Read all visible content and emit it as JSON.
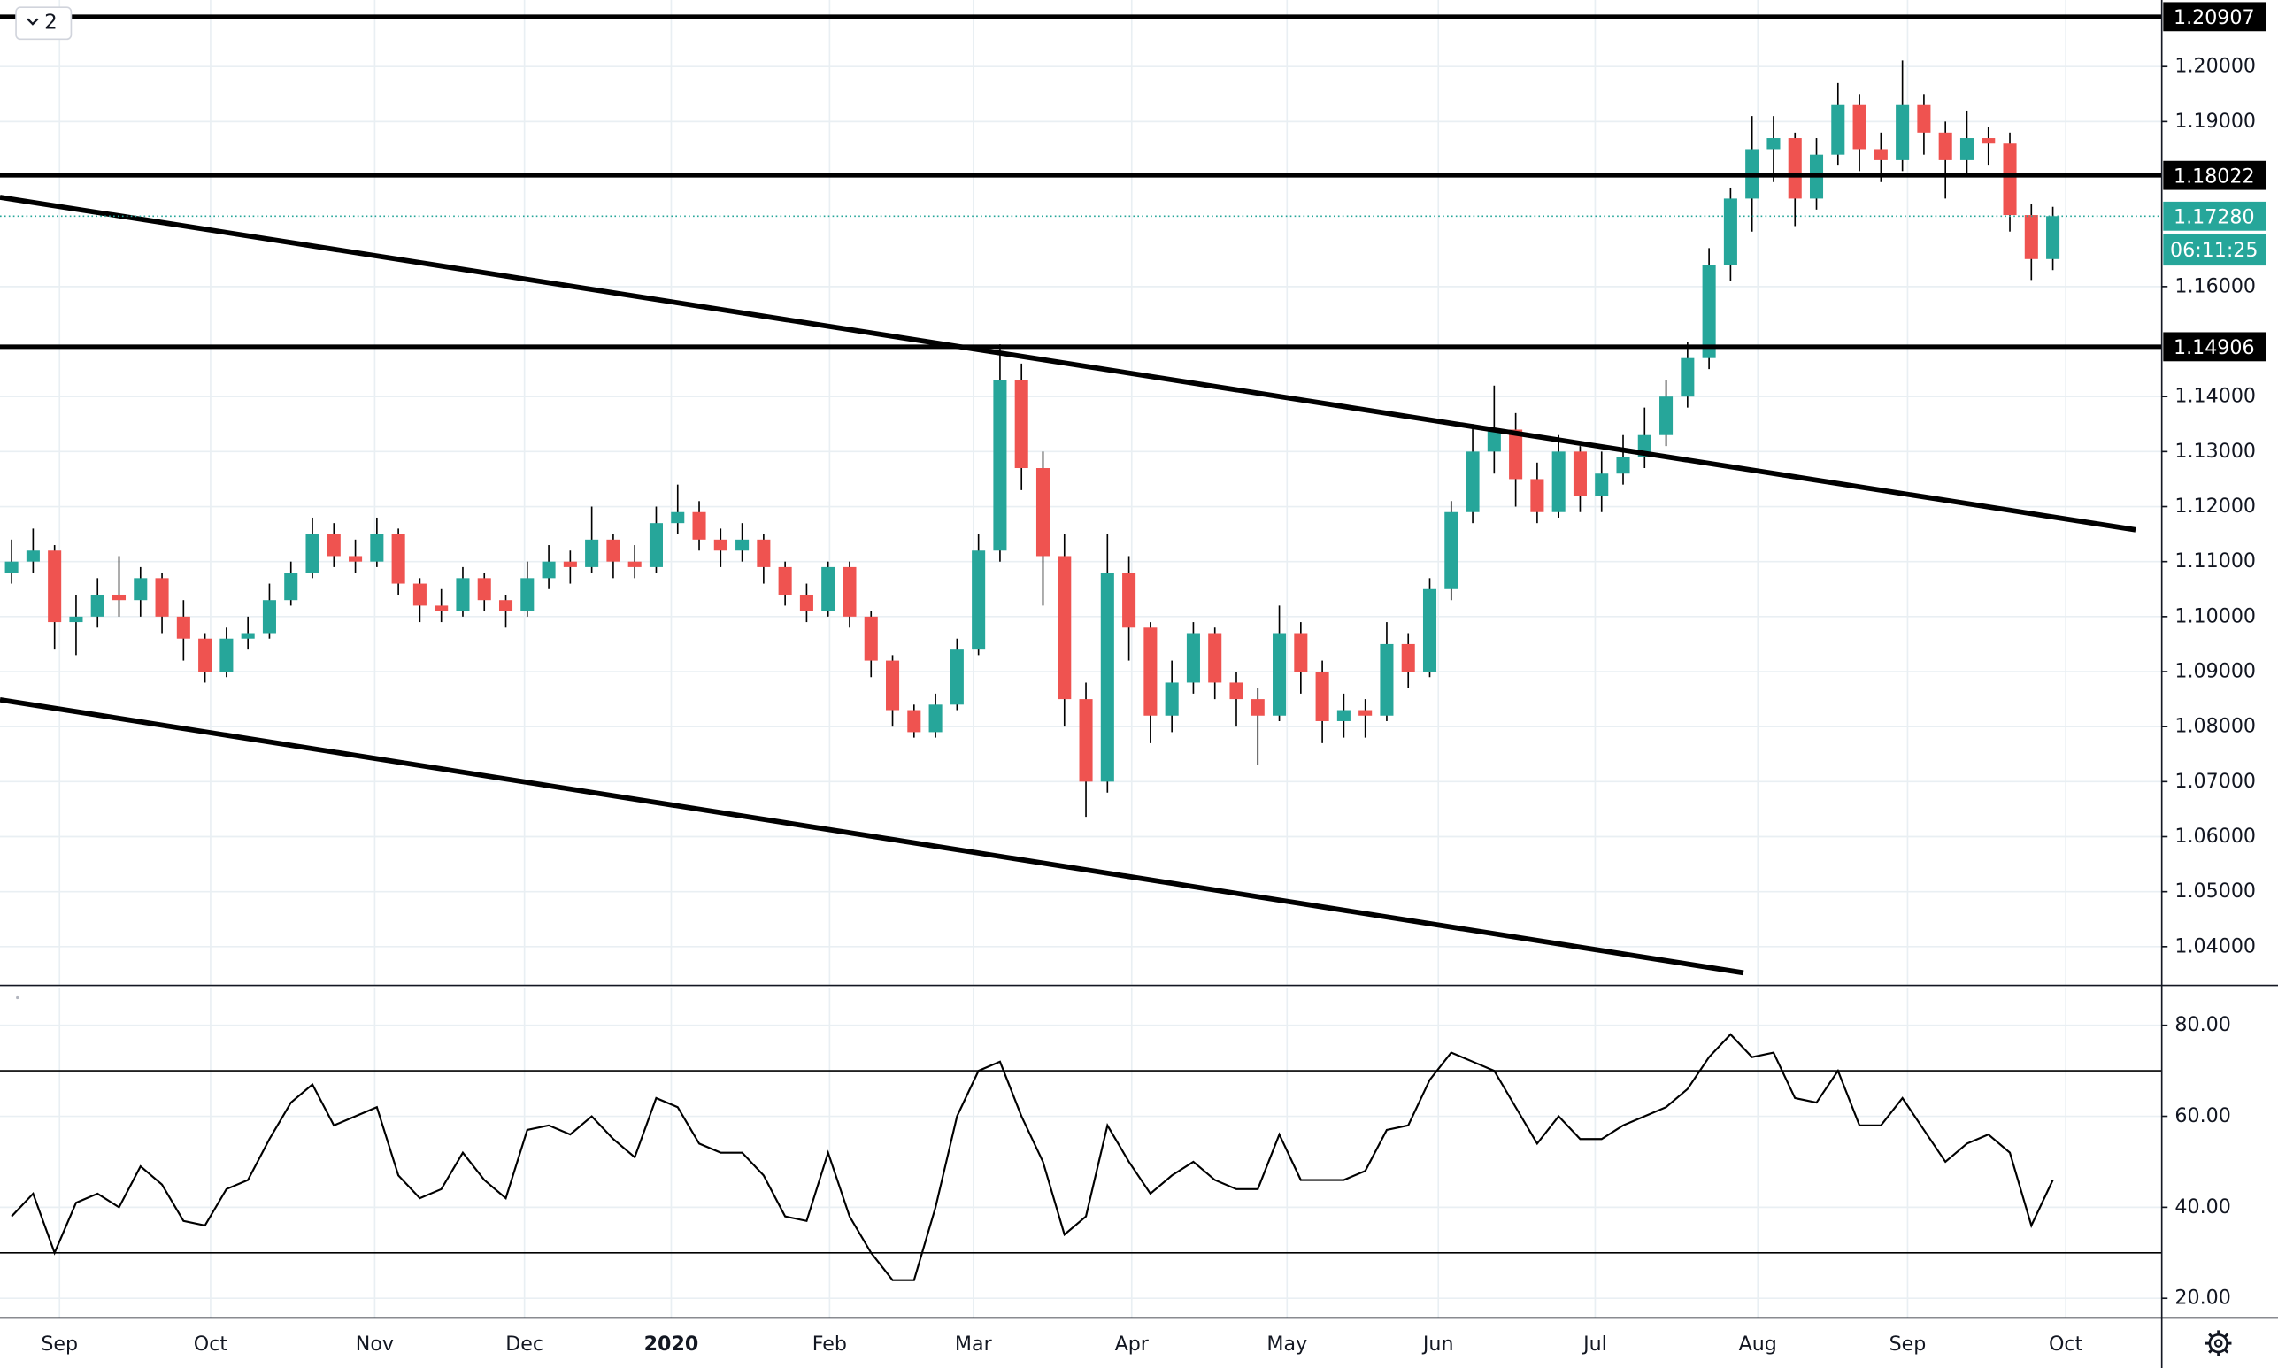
{
  "ui": {
    "badge": "2"
  },
  "chart_data": [
    {
      "type": "candlestick",
      "xlim": [
        -0.54,
        100.07
      ],
      "ylim": [
        1.0331,
        1.2121
      ],
      "grid": true,
      "up_color": "#26a69a",
      "down_color": "#ef5350",
      "open": [
        1.108,
        1.11,
        1.112,
        1.099,
        1.1,
        1.104,
        1.103,
        1.107,
        1.1,
        1.096,
        1.09,
        1.096,
        1.097,
        1.103,
        1.108,
        1.115,
        1.111,
        1.11,
        1.115,
        1.106,
        1.102,
        1.101,
        1.107,
        1.103,
        1.101,
        1.107,
        1.11,
        1.109,
        1.114,
        1.11,
        1.109,
        1.117,
        1.119,
        1.114,
        1.112,
        1.114,
        1.109,
        1.104,
        1.101,
        1.109,
        1.1,
        1.092,
        1.083,
        1.079,
        1.084,
        1.094,
        1.112,
        1.143,
        1.127,
        1.111,
        1.085,
        1.07,
        1.108,
        1.098,
        1.082,
        1.088,
        1.097,
        1.088,
        1.085,
        1.082,
        1.097,
        1.09,
        1.081,
        1.083,
        1.082,
        1.095,
        1.09,
        1.105,
        1.119,
        1.13,
        1.134,
        1.125,
        1.119,
        1.13,
        1.122,
        1.126,
        1.129,
        1.133,
        1.14,
        1.147,
        1.164,
        1.176,
        1.185,
        1.187,
        1.176,
        1.184,
        1.193,
        1.185,
        1.183,
        1.193,
        1.188,
        1.183,
        1.187,
        1.186,
        1.173,
        1.165
      ],
      "high": [
        1.114,
        1.116,
        1.113,
        1.104,
        1.107,
        1.111,
        1.109,
        1.108,
        1.103,
        1.097,
        1.098,
        1.1,
        1.106,
        1.11,
        1.118,
        1.117,
        1.114,
        1.118,
        1.116,
        1.107,
        1.105,
        1.109,
        1.108,
        1.104,
        1.11,
        1.113,
        1.112,
        1.12,
        1.115,
        1.113,
        1.12,
        1.124,
        1.121,
        1.116,
        1.117,
        1.115,
        1.11,
        1.106,
        1.11,
        1.11,
        1.101,
        1.093,
        1.084,
        1.086,
        1.096,
        1.115,
        1.1495,
        1.146,
        1.13,
        1.115,
        1.088,
        1.115,
        1.111,
        1.099,
        1.092,
        1.099,
        1.098,
        1.09,
        1.087,
        1.102,
        1.099,
        1.092,
        1.086,
        1.085,
        1.099,
        1.097,
        1.107,
        1.121,
        1.135,
        1.142,
        1.137,
        1.128,
        1.133,
        1.131,
        1.13,
        1.133,
        1.138,
        1.143,
        1.15,
        1.167,
        1.178,
        1.191,
        1.191,
        1.188,
        1.187,
        1.197,
        1.195,
        1.188,
        1.2011,
        1.195,
        1.19,
        1.192,
        1.189,
        1.188,
        1.175,
        1.1745
      ],
      "low": [
        1.106,
        1.108,
        1.094,
        1.093,
        1.098,
        1.1,
        1.1,
        1.097,
        1.092,
        1.088,
        1.089,
        1.094,
        1.096,
        1.102,
        1.107,
        1.109,
        1.108,
        1.109,
        1.104,
        1.099,
        1.099,
        1.1,
        1.101,
        1.098,
        1.1,
        1.105,
        1.106,
        1.108,
        1.107,
        1.107,
        1.108,
        1.115,
        1.112,
        1.109,
        1.11,
        1.106,
        1.102,
        1.099,
        1.1,
        1.098,
        1.089,
        1.08,
        1.078,
        1.078,
        1.083,
        1.093,
        1.11,
        1.123,
        1.102,
        1.08,
        1.0636,
        1.068,
        1.092,
        1.077,
        1.079,
        1.086,
        1.085,
        1.08,
        1.073,
        1.081,
        1.086,
        1.077,
        1.078,
        1.078,
        1.081,
        1.087,
        1.089,
        1.103,
        1.117,
        1.126,
        1.12,
        1.117,
        1.118,
        1.119,
        1.119,
        1.124,
        1.127,
        1.131,
        1.138,
        1.145,
        1.161,
        1.17,
        1.179,
        1.171,
        1.174,
        1.182,
        1.181,
        1.179,
        1.181,
        1.184,
        1.176,
        1.18,
        1.182,
        1.17,
        1.1612,
        1.163
      ],
      "close": [
        1.11,
        1.112,
        1.099,
        1.1,
        1.104,
        1.103,
        1.107,
        1.1,
        1.096,
        1.09,
        1.096,
        1.097,
        1.103,
        1.108,
        1.115,
        1.111,
        1.11,
        1.115,
        1.106,
        1.102,
        1.101,
        1.107,
        1.103,
        1.101,
        1.107,
        1.11,
        1.109,
        1.114,
        1.11,
        1.109,
        1.117,
        1.119,
        1.114,
        1.112,
        1.114,
        1.109,
        1.104,
        1.101,
        1.109,
        1.1,
        1.092,
        1.083,
        1.079,
        1.084,
        1.094,
        1.112,
        1.143,
        1.127,
        1.111,
        1.085,
        1.07,
        1.108,
        1.098,
        1.082,
        1.088,
        1.097,
        1.088,
        1.085,
        1.082,
        1.097,
        1.09,
        1.081,
        1.083,
        1.082,
        1.095,
        1.09,
        1.105,
        1.119,
        1.13,
        1.134,
        1.125,
        1.119,
        1.13,
        1.122,
        1.126,
        1.129,
        1.133,
        1.14,
        1.147,
        1.164,
        1.176,
        1.185,
        1.187,
        1.176,
        1.184,
        1.193,
        1.185,
        1.183,
        1.193,
        1.188,
        1.183,
        1.187,
        1.186,
        1.173,
        1.165,
        1.1728
      ],
      "yticks": [
        {
          "value": 1.04,
          "label": "1.04000"
        },
        {
          "value": 1.05,
          "label": "1.05000"
        },
        {
          "value": 1.06,
          "label": "1.06000"
        },
        {
          "value": 1.07,
          "label": "1.07000"
        },
        {
          "value": 1.08,
          "label": "1.08000"
        },
        {
          "value": 1.09,
          "label": "1.09000"
        },
        {
          "value": 1.1,
          "label": "1.10000"
        },
        {
          "value": 1.11,
          "label": "1.11000"
        },
        {
          "value": 1.12,
          "label": "1.12000"
        },
        {
          "value": 1.13,
          "label": "1.13000"
        },
        {
          "value": 1.14,
          "label": "1.14000"
        },
        {
          "value": 1.16,
          "label": "1.16000"
        },
        {
          "value": 1.19,
          "label": "1.19000"
        },
        {
          "value": 1.2,
          "label": "1.20000"
        }
      ],
      "xticks": [
        {
          "value": 2.23,
          "label": "Sep"
        },
        {
          "value": 9.26,
          "label": "Oct"
        },
        {
          "value": 16.9,
          "label": "Nov"
        },
        {
          "value": 23.87,
          "label": "Dec"
        },
        {
          "value": 30.7,
          "label": "2020"
        },
        {
          "value": 38.07,
          "label": "Feb"
        },
        {
          "value": 44.76,
          "label": "Mar"
        },
        {
          "value": 52.13,
          "label": "Apr"
        },
        {
          "value": 59.36,
          "label": "May"
        },
        {
          "value": 66.4,
          "label": "Jun"
        },
        {
          "value": 73.7,
          "label": "Jul"
        },
        {
          "value": 81.27,
          "label": "Aug"
        },
        {
          "value": 88.24,
          "label": "Sep"
        },
        {
          "value": 95.6,
          "label": "Oct"
        }
      ],
      "levels": [
        1.20907,
        1.18022,
        1.14906
      ],
      "trendlines": [
        {
          "x": [
            -0.54,
            98.85
          ],
          "y": [
            1.17624,
            1.11578
          ]
        },
        {
          "x": [
            -0.54,
            80.6
          ],
          "y": [
            1.08489,
            1.03525
          ]
        }
      ],
      "last_price": {
        "value": 1.1728,
        "label": "1.17280"
      },
      "countdown": "06:11:25"
    },
    {
      "type": "line",
      "color": "#000000",
      "ylim": [
        15.85,
        88.3
      ],
      "values": [
        38,
        43,
        30,
        41,
        43,
        40,
        49,
        45,
        37,
        36,
        44,
        46,
        55,
        63,
        67,
        58,
        60,
        62,
        47,
        42,
        44,
        52,
        46,
        42,
        57,
        58,
        56,
        60,
        55,
        51,
        64,
        62,
        54,
        52,
        52,
        47,
        38,
        37,
        52,
        38,
        30,
        24,
        24,
        40,
        60,
        70,
        72,
        60,
        50,
        34,
        38,
        58,
        50,
        43,
        47,
        50,
        46,
        44,
        44,
        56,
        46,
        46,
        46,
        48,
        57,
        58,
        68,
        74,
        72,
        70,
        62,
        54,
        60,
        55,
        55,
        58,
        60,
        62,
        66,
        73,
        78,
        73,
        74,
        64,
        63,
        70,
        58,
        58,
        64,
        57,
        50,
        54,
        56,
        52,
        36,
        46
      ],
      "yticks": [
        {
          "value": 20,
          "label": "20.00"
        },
        {
          "value": 40,
          "label": "40.00"
        },
        {
          "value": 60,
          "label": "60.00"
        },
        {
          "value": 80,
          "label": "80.00"
        }
      ],
      "bands": [
        70,
        30
      ]
    }
  ]
}
